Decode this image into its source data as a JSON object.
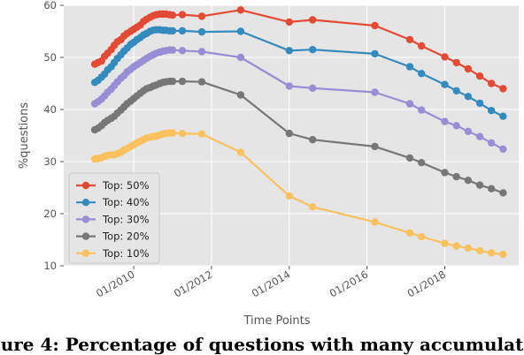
{
  "caption": "ure 4: Percentage of questions with many accumulat",
  "chart_data": {
    "type": "line",
    "title": "",
    "xlabel": "Time Points",
    "ylabel": "%questions",
    "ylim": [
      10,
      60
    ],
    "yticks": [
      10,
      20,
      30,
      40,
      50,
      60
    ],
    "xlim": [
      2008.2,
      2019.9
    ],
    "xticks": [
      {
        "value": 2010,
        "label": "01/2010"
      },
      {
        "value": 2012,
        "label": "01/2012"
      },
      {
        "value": 2014,
        "label": "01/2014"
      },
      {
        "value": 2016,
        "label": "01/2016"
      },
      {
        "value": 2018,
        "label": "01/2018"
      }
    ],
    "grid": true,
    "legend": "lower-left",
    "x": [
      2009.0,
      2009.08,
      2009.17,
      2009.25,
      2009.33,
      2009.42,
      2009.5,
      2009.58,
      2009.67,
      2009.75,
      2009.83,
      2009.92,
      2010.0,
      2010.08,
      2010.17,
      2010.25,
      2010.33,
      2010.42,
      2010.5,
      2010.58,
      2010.67,
      2010.75,
      2010.83,
      2010.92,
      2011.0,
      2011.25,
      2011.75,
      2012.75,
      2014.0,
      2014.6,
      2016.2,
      2017.1,
      2017.4,
      2018.0,
      2018.3,
      2018.6,
      2018.9,
      2019.2,
      2019.5
    ],
    "series": [
      {
        "name": "Top: 50%",
        "color": "#E24A33",
        "values": [
          48.7,
          49.0,
          49.3,
          50.2,
          50.8,
          51.5,
          52.3,
          53.0,
          53.4,
          54.1,
          54.6,
          55.0,
          55.4,
          55.8,
          56.2,
          56.9,
          57.3,
          57.7,
          58.0,
          58.2,
          58.3,
          58.3,
          58.3,
          58.2,
          58.1,
          58.2,
          57.9,
          59.1,
          56.8,
          57.2,
          56.1,
          53.4,
          52.2,
          50.1,
          49.0,
          47.8,
          46.4,
          45.0,
          44.0
        ]
      },
      {
        "name": "Top: 40%",
        "color": "#348ABD",
        "values": [
          45.2,
          45.6,
          46.2,
          46.8,
          47.6,
          48.2,
          49.0,
          49.8,
          50.5,
          51.2,
          51.8,
          52.5,
          52.9,
          53.4,
          53.8,
          54.3,
          54.6,
          55.0,
          55.2,
          55.3,
          55.3,
          55.2,
          55.2,
          55.1,
          55.1,
          55.1,
          54.9,
          55.0,
          51.3,
          51.5,
          50.7,
          48.2,
          46.9,
          44.8,
          43.6,
          42.5,
          41.2,
          39.8,
          38.7
        ]
      },
      {
        "name": "Top: 30%",
        "color": "#988ED5",
        "values": [
          41.1,
          41.5,
          42.0,
          42.6,
          43.3,
          43.9,
          44.6,
          45.3,
          46.0,
          46.5,
          47.2,
          47.7,
          48.2,
          48.6,
          49.0,
          49.4,
          49.8,
          50.2,
          50.5,
          50.8,
          51.0,
          51.2,
          51.3,
          51.4,
          51.4,
          51.3,
          51.1,
          50.0,
          44.5,
          44.1,
          43.3,
          41.1,
          39.9,
          37.7,
          36.9,
          35.8,
          34.8,
          33.6,
          32.4
        ]
      },
      {
        "name": "Top: 20%",
        "color": "#777777",
        "values": [
          36.1,
          36.4,
          36.9,
          37.5,
          37.9,
          38.3,
          38.7,
          39.3,
          39.9,
          40.5,
          41.1,
          41.6,
          42.1,
          42.6,
          43.1,
          43.6,
          44.0,
          44.2,
          44.5,
          44.7,
          45.0,
          45.2,
          45.3,
          45.4,
          45.4,
          45.4,
          45.3,
          42.8,
          35.4,
          34.2,
          32.9,
          30.7,
          29.8,
          27.9,
          27.1,
          26.4,
          25.5,
          24.8,
          24.0
        ]
      },
      {
        "name": "Top: 10%",
        "color": "#FBC15E",
        "values": [
          30.5,
          30.6,
          30.7,
          31.0,
          31.2,
          31.3,
          31.3,
          31.5,
          31.8,
          32.2,
          32.5,
          32.9,
          33.2,
          33.6,
          33.9,
          34.2,
          34.5,
          34.7,
          34.8,
          34.9,
          35.1,
          35.3,
          35.4,
          35.5,
          35.5,
          35.4,
          35.3,
          31.8,
          23.4,
          21.3,
          18.4,
          16.3,
          15.6,
          14.3,
          13.8,
          13.4,
          12.9,
          12.5,
          12.2
        ]
      }
    ]
  }
}
